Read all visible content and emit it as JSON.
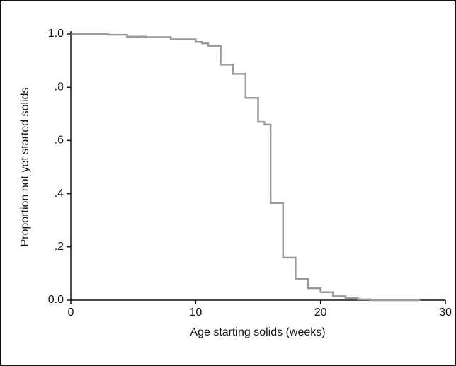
{
  "chart_data": {
    "type": "line",
    "step": "post",
    "xlabel": "Age starting solids (weeks)",
    "ylabel": "Proportion not yet started solids",
    "x": [
      0,
      3,
      4.5,
      6,
      8,
      10,
      10.5,
      11,
      12,
      13,
      14,
      15,
      15.5,
      16,
      17,
      18,
      19,
      20,
      21,
      22,
      23,
      24,
      28
    ],
    "series": [
      {
        "color": "#9a9a9a",
        "values": [
          1.0,
          0.997,
          0.99,
          0.988,
          0.98,
          0.97,
          0.965,
          0.955,
          0.885,
          0.85,
          0.76,
          0.67,
          0.66,
          0.365,
          0.16,
          0.08,
          0.045,
          0.03,
          0.015,
          0.008,
          0.003,
          0.0,
          0.0
        ]
      }
    ],
    "xlim": [
      0,
      30
    ],
    "xticks": [
      0,
      10,
      20,
      30
    ],
    "ylim": [
      0,
      1
    ],
    "yticks": [
      {
        "value": 0,
        "label": "0.0"
      },
      {
        "value": 0.2,
        "label": ".2"
      },
      {
        "value": 0.4,
        "label": ".4"
      },
      {
        "value": 0.6,
        "label": ".6"
      },
      {
        "value": 0.8,
        "label": ".8"
      },
      {
        "value": 1,
        "label": "1.0"
      }
    ]
  }
}
